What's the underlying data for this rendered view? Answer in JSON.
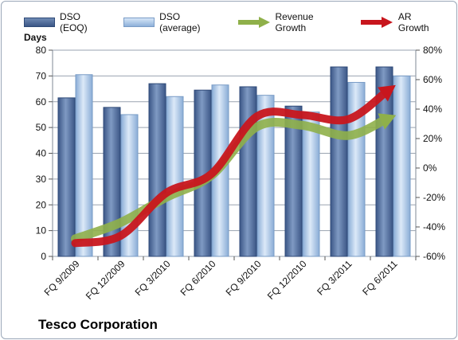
{
  "company": "Tesco Corporation",
  "legend": {
    "eoq": "DSO (EOQ)",
    "avg": "DSO (average)",
    "revenue": "Revenue Growth",
    "ar": "AR Growth"
  },
  "colors": {
    "eoq_top": "#7f9ac3",
    "eoq_bottom": "#3b5686",
    "avg_top": "#dce9f8",
    "avg_bottom": "#89acd6",
    "revenue": "#8fb04a",
    "ar": "#c8161d",
    "plot_bg": "#ffffff",
    "grid": "#9aa3b0"
  },
  "chart_data": {
    "type": "bar",
    "ylabel": "Days",
    "ylim": [
      0,
      80
    ],
    "y2lim": [
      -60,
      80
    ],
    "yticks": [
      "0",
      "10",
      "20",
      "30",
      "40",
      "50",
      "60",
      "70",
      "80"
    ],
    "y2ticks": [
      "-60%",
      "-40%",
      "-20%",
      "0%",
      "20%",
      "40%",
      "60%",
      "80%"
    ],
    "categories": [
      "FQ 9/2009",
      "FQ 12/2009",
      "FQ 3/2010",
      "FQ 6/2010",
      "FQ 9/2010",
      "FQ 12/2010",
      "FQ 3/2011",
      "FQ 6/2011"
    ],
    "series": [
      {
        "name": "DSO (EOQ)",
        "axis": "left",
        "values": [
          61.5,
          57.8,
          67,
          64.5,
          65.8,
          58.3,
          73.5,
          73.5
        ]
      },
      {
        "name": "DSO (average)",
        "axis": "left",
        "values": [
          70.5,
          55,
          62,
          66.5,
          62.5,
          56,
          67.5,
          70
        ]
      },
      {
        "name": "Revenue Growth",
        "axis": "right",
        "style": "arrow",
        "values": [
          -48,
          -37,
          -20,
          -5,
          28,
          29,
          22,
          35
        ]
      },
      {
        "name": "AR Growth",
        "axis": "right",
        "style": "arrow",
        "values": [
          -51,
          -46,
          -17,
          -4,
          35,
          36,
          33,
          55
        ]
      }
    ]
  }
}
